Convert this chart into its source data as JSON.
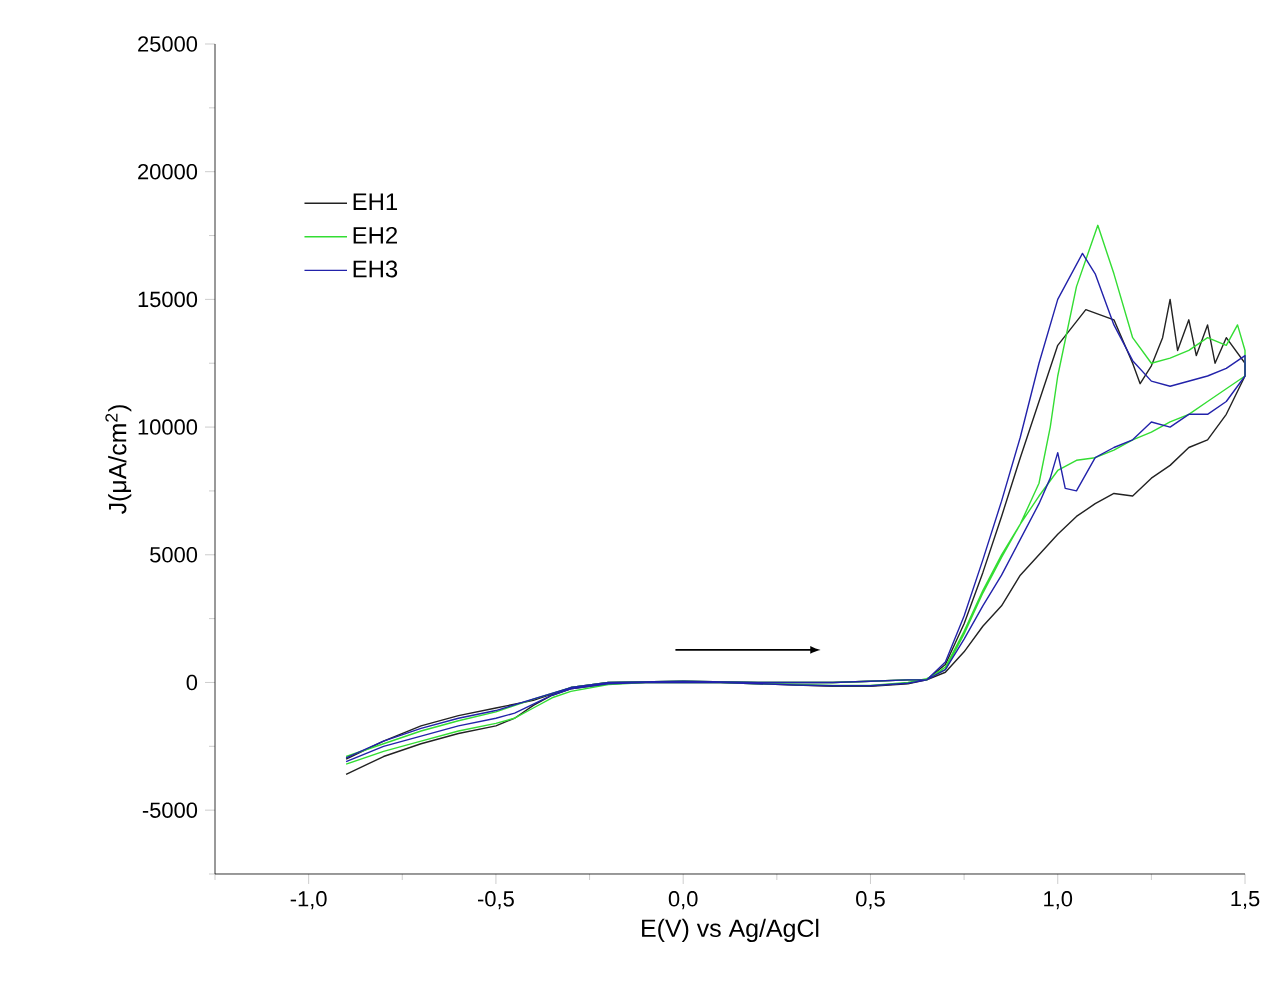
{
  "chart_data": {
    "type": "line",
    "xlabel": "E(V) vs Ag/AgCl",
    "ylabel": "J(μA/cm$^{2}$)",
    "xlim": [
      -1.25,
      1.5
    ],
    "ylim": [
      -7500,
      25000
    ],
    "xticks": [
      {
        "value": -1.25,
        "label": null
      },
      {
        "value": -1,
        "label": "-1,0"
      },
      {
        "value": -0.75,
        "label": null
      },
      {
        "value": -0.5,
        "label": "-0,5"
      },
      {
        "value": -0.25,
        "label": null
      },
      {
        "value": 0,
        "label": "0,0"
      },
      {
        "value": 0.25,
        "label": null
      },
      {
        "value": 0.5,
        "label": "0,5"
      },
      {
        "value": 0.75,
        "label": null
      },
      {
        "value": 1,
        "label": "1,0"
      },
      {
        "value": 1.25,
        "label": null
      },
      {
        "value": 1.5,
        "label": "1,5"
      }
    ],
    "yticks": [
      {
        "value": -7500,
        "label": null
      },
      -5000,
      {
        "value": -2500,
        "label": null
      },
      0,
      {
        "value": 2500,
        "label": null
      },
      5000,
      {
        "value": 7500,
        "label": null
      },
      10000,
      {
        "value": 12500,
        "label": null
      },
      15000,
      {
        "value": 17500,
        "label": null
      },
      20000,
      {
        "value": 22500,
        "label": null
      },
      25000
    ],
    "legend": "top left",
    "grid": false,
    "marker": "none",
    "line_style": "solid",
    "series": [
      {
        "name": "EH1",
        "color": "#222222",
        "x": [
          -0.9,
          -0.8,
          -0.7,
          -0.6,
          -0.5,
          -0.45,
          -0.4,
          -0.35,
          -0.3,
          -0.2,
          -0.1,
          0,
          0.1,
          0.2,
          0.3,
          0.4,
          0.5,
          0.6,
          0.65,
          0.7,
          0.75,
          0.8,
          0.85,
          0.9,
          0.95,
          1.0,
          1.075,
          1.15,
          1.2,
          1.22,
          1.25,
          1.28,
          1.3,
          1.32,
          1.35,
          1.37,
          1.4,
          1.42,
          1.45,
          1.5,
          1.5,
          1.45,
          1.4,
          1.35,
          1.3,
          1.25,
          1.2,
          1.15,
          1.1,
          1.05,
          1.0,
          0.95,
          0.9,
          0.85,
          0.8,
          0.75,
          0.7,
          0.65,
          0.6,
          0.5,
          0.4,
          0.2,
          0,
          -0.2,
          -0.3,
          -0.4,
          -0.5,
          -0.6,
          -0.7,
          -0.8,
          -0.9
        ],
        "values": [
          -3600,
          -2900,
          -2400,
          -2000,
          -1700,
          -1400,
          -900,
          -500,
          -250,
          -50,
          0,
          0,
          0,
          -50,
          -100,
          -150,
          -150,
          -50,
          100,
          700,
          2300,
          4300,
          6500,
          8800,
          11000,
          13200,
          14600,
          14200,
          12500,
          11700,
          12400,
          13500,
          15000,
          13000,
          14200,
          12800,
          14000,
          12500,
          13500,
          12500,
          12000,
          10500,
          9500,
          9200,
          8500,
          8000,
          7300,
          7400,
          7000,
          6500,
          5800,
          5000,
          4200,
          3000,
          2200,
          1200,
          400,
          100,
          100,
          50,
          0,
          0,
          50,
          0,
          -200,
          -700,
          -1000,
          -1300,
          -1700,
          -2300,
          -3000
        ]
      },
      {
        "name": "EH2",
        "color": "#33dd33",
        "x": [
          -0.9,
          -0.8,
          -0.7,
          -0.6,
          -0.5,
          -0.45,
          -0.4,
          -0.35,
          -0.3,
          -0.2,
          -0.1,
          0,
          0.1,
          0.2,
          0.3,
          0.4,
          0.5,
          0.6,
          0.65,
          0.7,
          0.75,
          0.8,
          0.85,
          0.9,
          0.95,
          0.98,
          1.0,
          1.05,
          1.107,
          1.15,
          1.2,
          1.25,
          1.3,
          1.35,
          1.4,
          1.45,
          1.48,
          1.5,
          1.5,
          1.45,
          1.4,
          1.35,
          1.3,
          1.25,
          1.2,
          1.15,
          1.1,
          1.05,
          1.0,
          0.95,
          0.9,
          0.85,
          0.8,
          0.75,
          0.7,
          0.65,
          0.6,
          0.5,
          0.4,
          0.2,
          0,
          -0.2,
          -0.3,
          -0.4,
          -0.5,
          -0.6,
          -0.7,
          -0.8,
          -0.9
        ],
        "values": [
          -3200,
          -2700,
          -2300,
          -1900,
          -1600,
          -1400,
          -1000,
          -600,
          -350,
          -80,
          0,
          0,
          0,
          -50,
          -80,
          -120,
          -120,
          0,
          150,
          500,
          1900,
          3500,
          4900,
          6200,
          7800,
          10000,
          12000,
          15500,
          17900,
          16000,
          13500,
          12500,
          12700,
          13000,
          13500,
          13200,
          14000,
          13000,
          12000,
          11500,
          11000,
          10500,
          10200,
          9800,
          9500,
          9100,
          8800,
          8700,
          8300,
          7300,
          6200,
          5000,
          3600,
          2000,
          600,
          100,
          100,
          50,
          0,
          0,
          50,
          0,
          -200,
          -650,
          -1150,
          -1500,
          -1900,
          -2400,
          -2900
        ]
      },
      {
        "name": "EH3",
        "color": "#2222aa",
        "x": [
          -0.9,
          -0.8,
          -0.7,
          -0.6,
          -0.5,
          -0.45,
          -0.4,
          -0.35,
          -0.3,
          -0.2,
          -0.1,
          0,
          0.1,
          0.2,
          0.3,
          0.4,
          0.5,
          0.6,
          0.65,
          0.7,
          0.75,
          0.8,
          0.85,
          0.9,
          0.95,
          1.0,
          1.066,
          1.1,
          1.15,
          1.2,
          1.25,
          1.3,
          1.4,
          1.45,
          1.5,
          1.5,
          1.45,
          1.4,
          1.35,
          1.3,
          1.25,
          1.2,
          1.15,
          1.1,
          1.05,
          1.02,
          1.0,
          0.98,
          0.95,
          0.9,
          0.85,
          0.8,
          0.75,
          0.7,
          0.65,
          0.6,
          0.5,
          0.4,
          0.2,
          0,
          -0.2,
          -0.3,
          -0.4,
          -0.5,
          -0.6,
          -0.7,
          -0.8,
          -0.9
        ],
        "values": [
          -3100,
          -2500,
          -2100,
          -1700,
          -1400,
          -1200,
          -850,
          -500,
          -250,
          -50,
          0,
          0,
          0,
          -50,
          -100,
          -130,
          -130,
          -30,
          100,
          800,
          2600,
          4800,
          7100,
          9600,
          12500,
          15000,
          16800,
          16000,
          14000,
          12600,
          11800,
          11600,
          12000,
          12300,
          12800,
          12000,
          11000,
          10500,
          10500,
          10000,
          10200,
          9500,
          9200,
          8800,
          7500,
          7600,
          9000,
          8000,
          7000,
          5600,
          4200,
          3000,
          1700,
          500,
          100,
          100,
          50,
          0,
          0,
          50,
          0,
          -200,
          -650,
          -1100,
          -1400,
          -1800,
          -2300,
          -2950
        ]
      }
    ]
  }
}
